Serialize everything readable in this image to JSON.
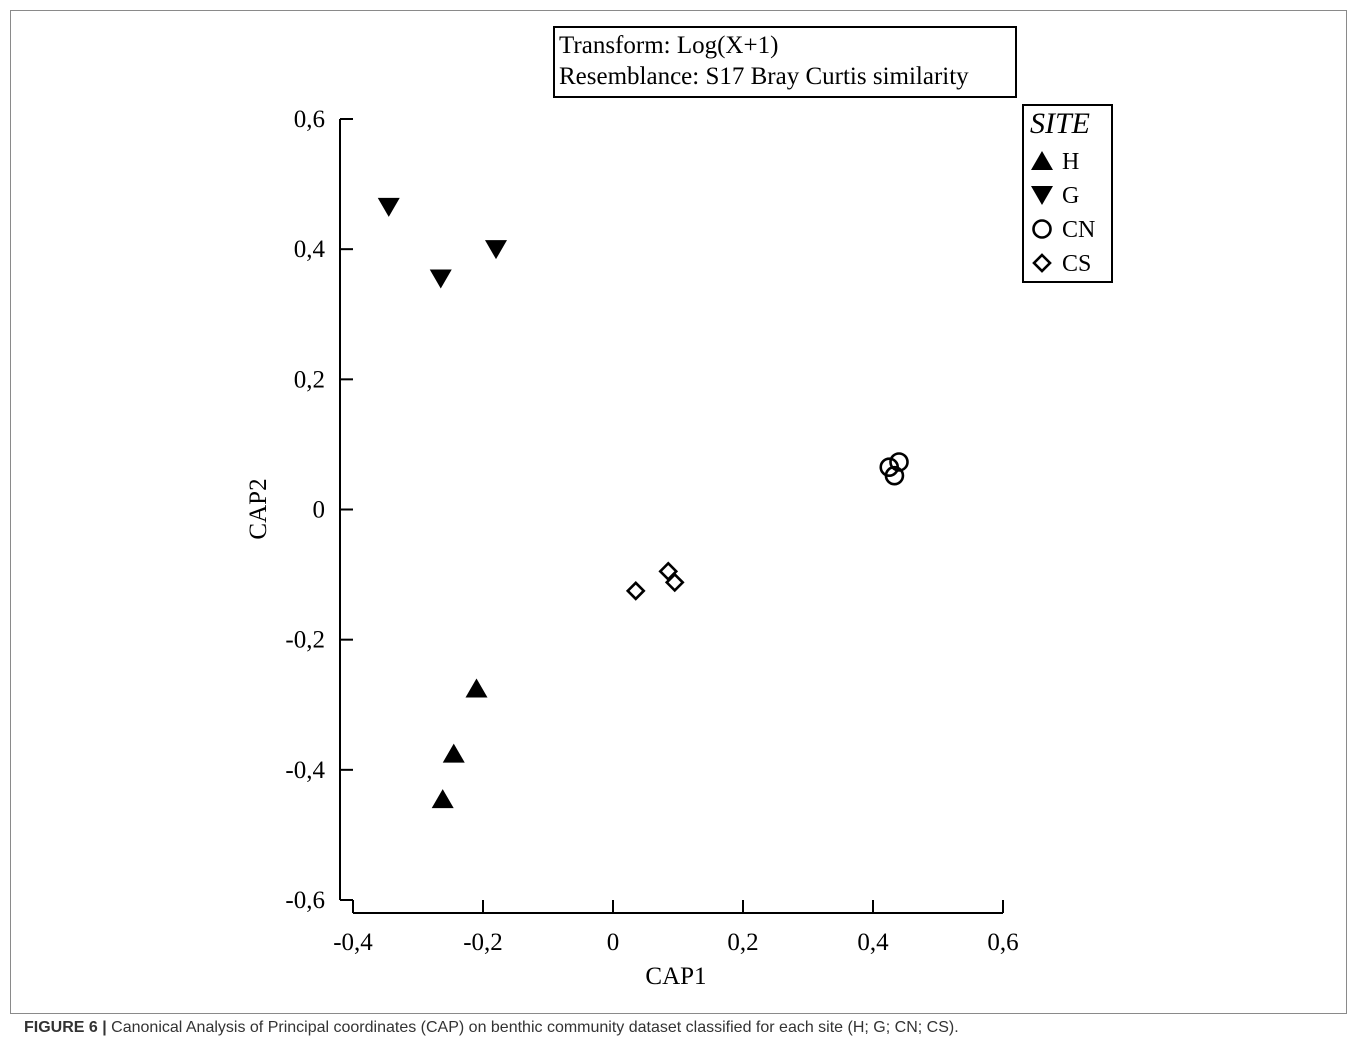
{
  "figure": {
    "caption_label": "FIGURE 6 |",
    "caption_text": " Canonical Analysis of Principal coordinates (CAP) on benthic community dataset classified for each site (H; G; CN; CS)."
  },
  "chart_data": {
    "type": "scatter",
    "info_box": [
      "Transform: Log(X+1)",
      "Resemblance: S17 Bray Curtis similarity"
    ],
    "xlabel": "CAP1",
    "ylabel": "CAP2",
    "xlim": [
      -0.4,
      0.6
    ],
    "ylim": [
      -0.6,
      0.6
    ],
    "x_ticks": [
      -0.4,
      -0.2,
      0,
      0.2,
      0.4,
      0.6
    ],
    "y_ticks": [
      -0.6,
      -0.4,
      -0.2,
      0,
      0.2,
      0.4,
      0.6
    ],
    "x_tick_labels": [
      "-0,4",
      "-0,2",
      "0",
      "0,2",
      "0,4",
      "0,6"
    ],
    "y_tick_labels": [
      "-0,6",
      "-0,4",
      "-0,2",
      "0",
      "0,2",
      "0,4",
      "0,6"
    ],
    "grid": false,
    "legend": {
      "title": "SITE",
      "position": "top-right"
    },
    "series": [
      {
        "name": "H",
        "marker": "triangle-up",
        "filled": true,
        "points": [
          [
            -0.21,
            -0.275
          ],
          [
            -0.245,
            -0.375
          ],
          [
            -0.262,
            -0.445
          ]
        ]
      },
      {
        "name": "G",
        "marker": "triangle-down",
        "filled": true,
        "points": [
          [
            -0.345,
            0.465
          ],
          [
            -0.265,
            0.355
          ],
          [
            -0.18,
            0.4
          ]
        ]
      },
      {
        "name": "CN",
        "marker": "circle",
        "filled": false,
        "points": [
          [
            0.425,
            0.065
          ],
          [
            0.44,
            0.073
          ],
          [
            0.433,
            0.052
          ]
        ]
      },
      {
        "name": "CS",
        "marker": "diamond",
        "filled": false,
        "points": [
          [
            0.035,
            -0.125
          ],
          [
            0.085,
            -0.095
          ],
          [
            0.095,
            -0.112
          ]
        ]
      }
    ]
  }
}
